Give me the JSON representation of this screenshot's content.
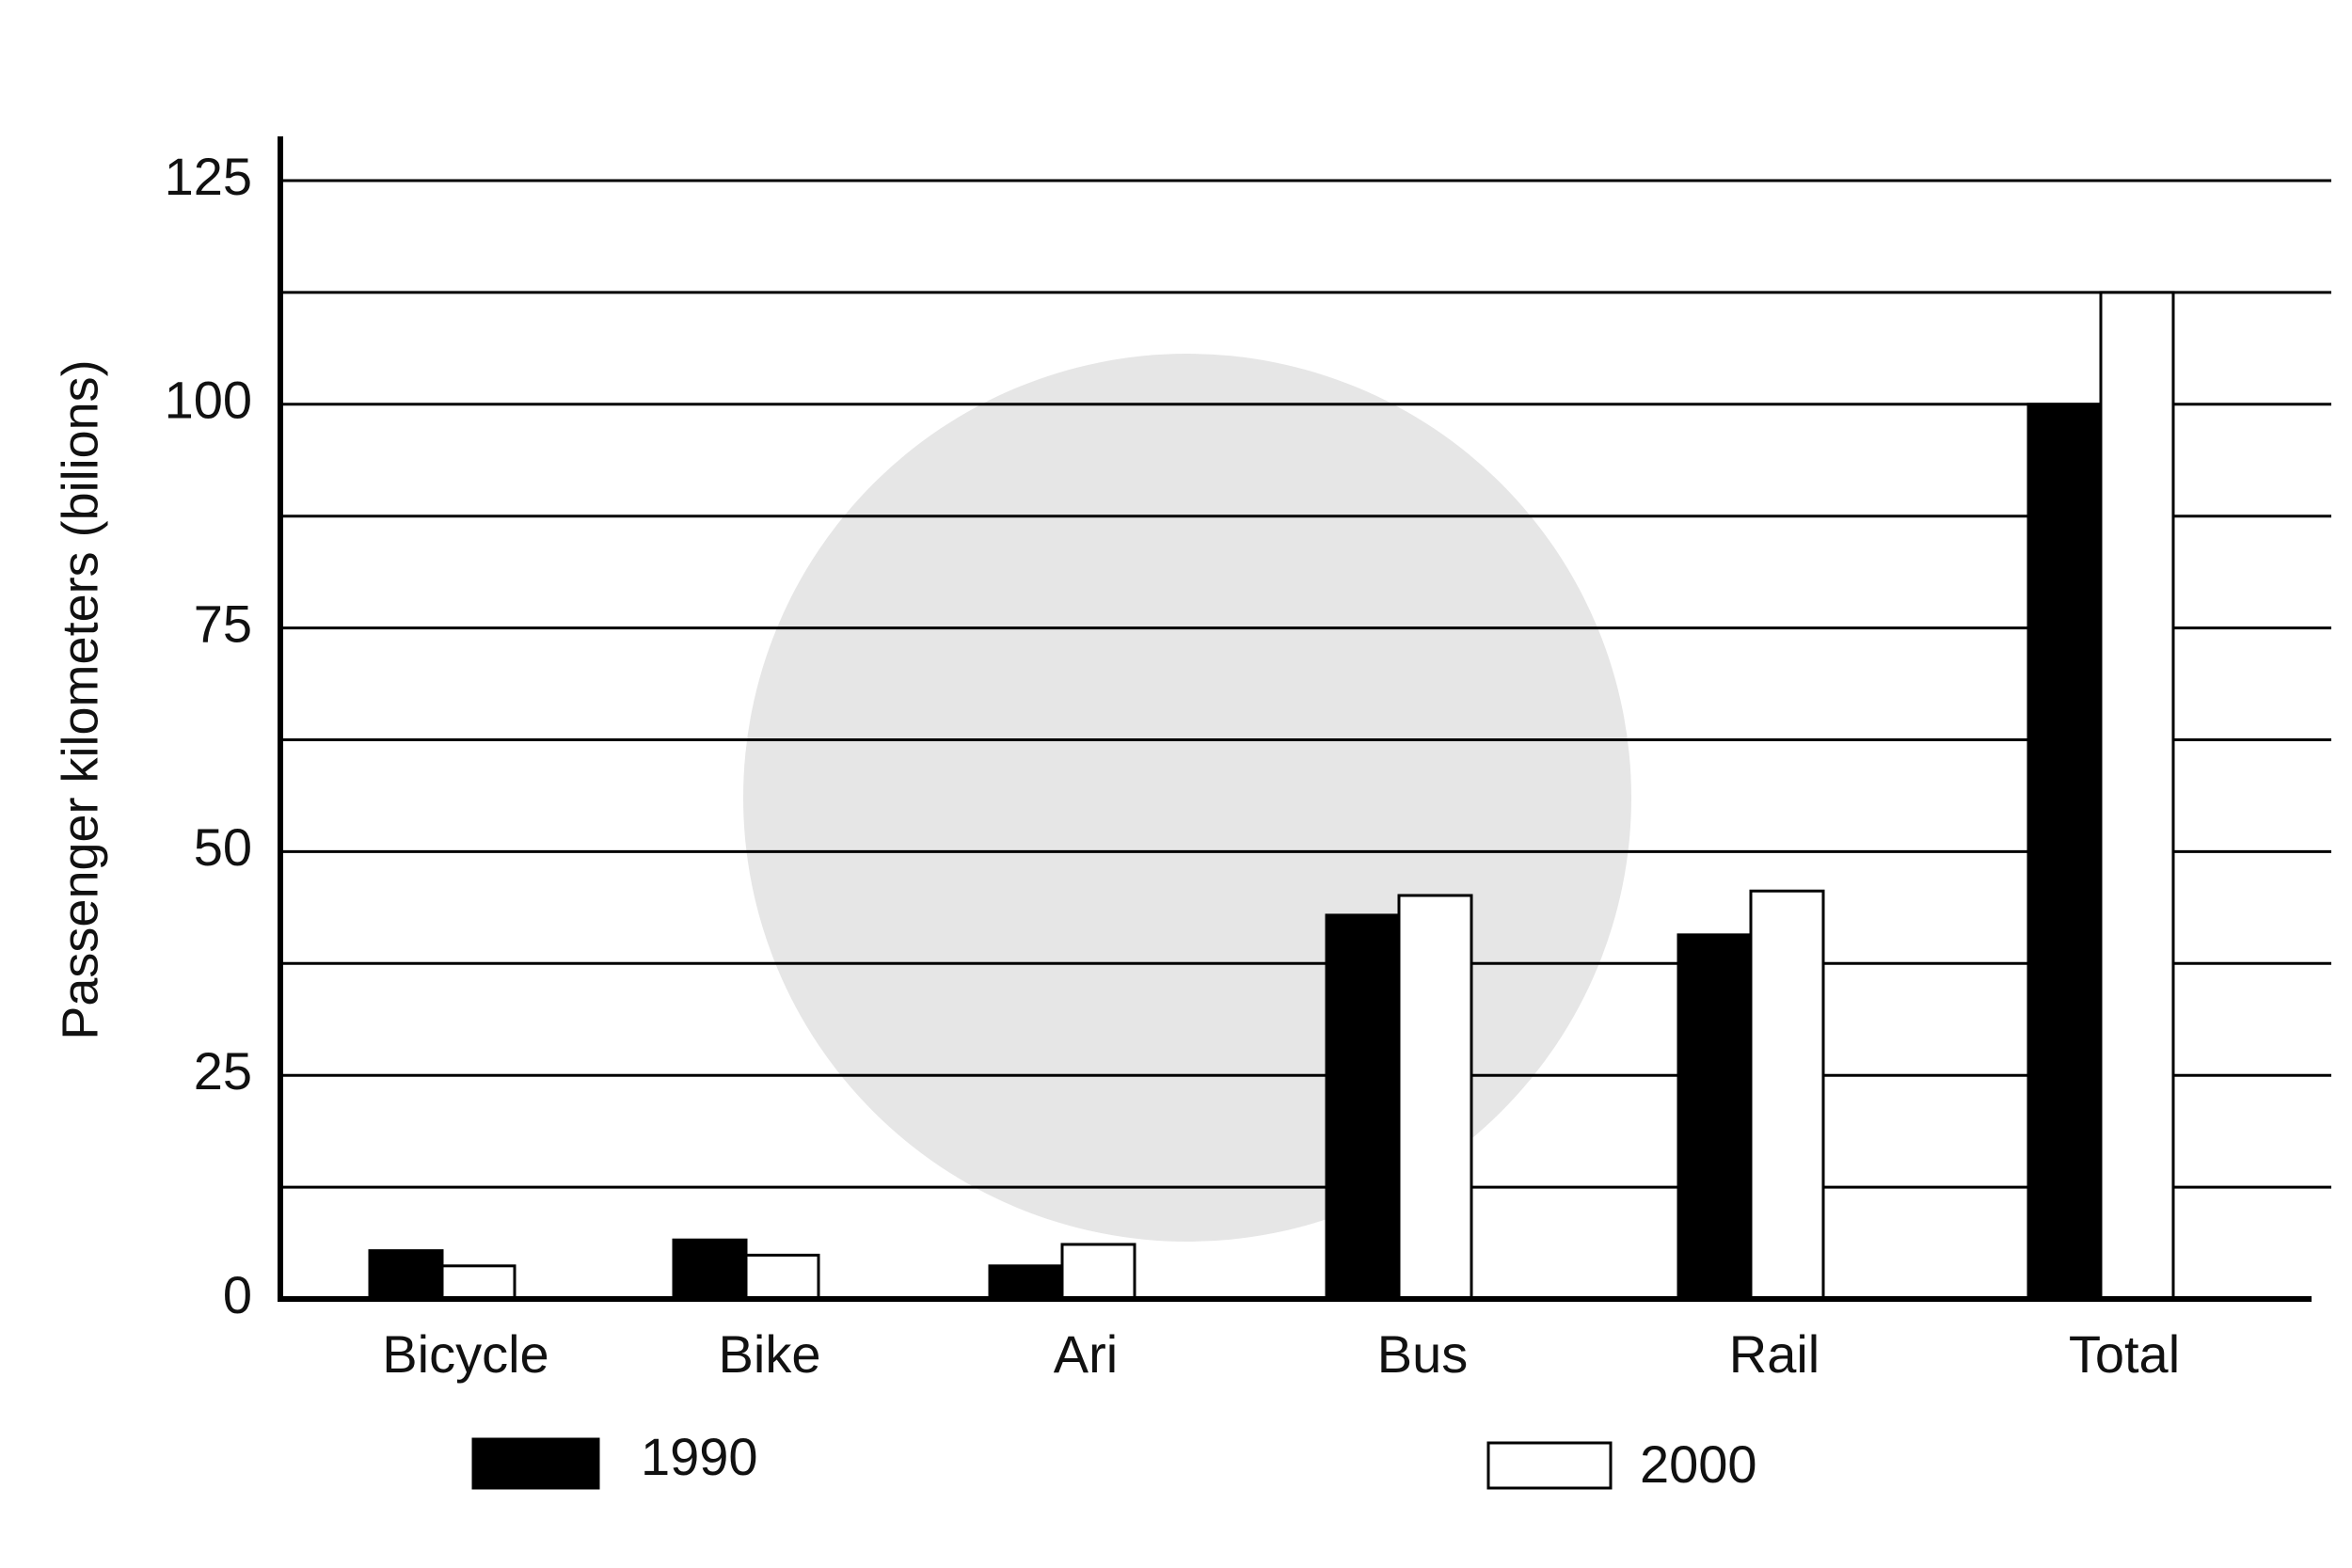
{
  "chart_data": {
    "type": "bar",
    "y_label": "Passenger kilometers (bilions)",
    "categories": [
      "Bicycle",
      "Bike",
      "Ari",
      "Bus",
      "Rail",
      "Total"
    ],
    "series": [
      {
        "name": "1990",
        "color": "#000000",
        "values": [
          5.4,
          6.6,
          3.7,
          42.9,
          40.7,
          100
        ]
      },
      {
        "name": "2000",
        "color": "#ffffff",
        "values": [
          3.7,
          4.9,
          6.1,
          45.1,
          45.6,
          112.5
        ]
      }
    ],
    "ylim": [
      0,
      125
    ],
    "yticks": [
      0,
      25,
      50,
      75,
      100,
      125
    ],
    "minor_yticks": [
      12.5,
      37.5,
      62.5,
      87.5,
      112.5
    ],
    "grid": true
  }
}
